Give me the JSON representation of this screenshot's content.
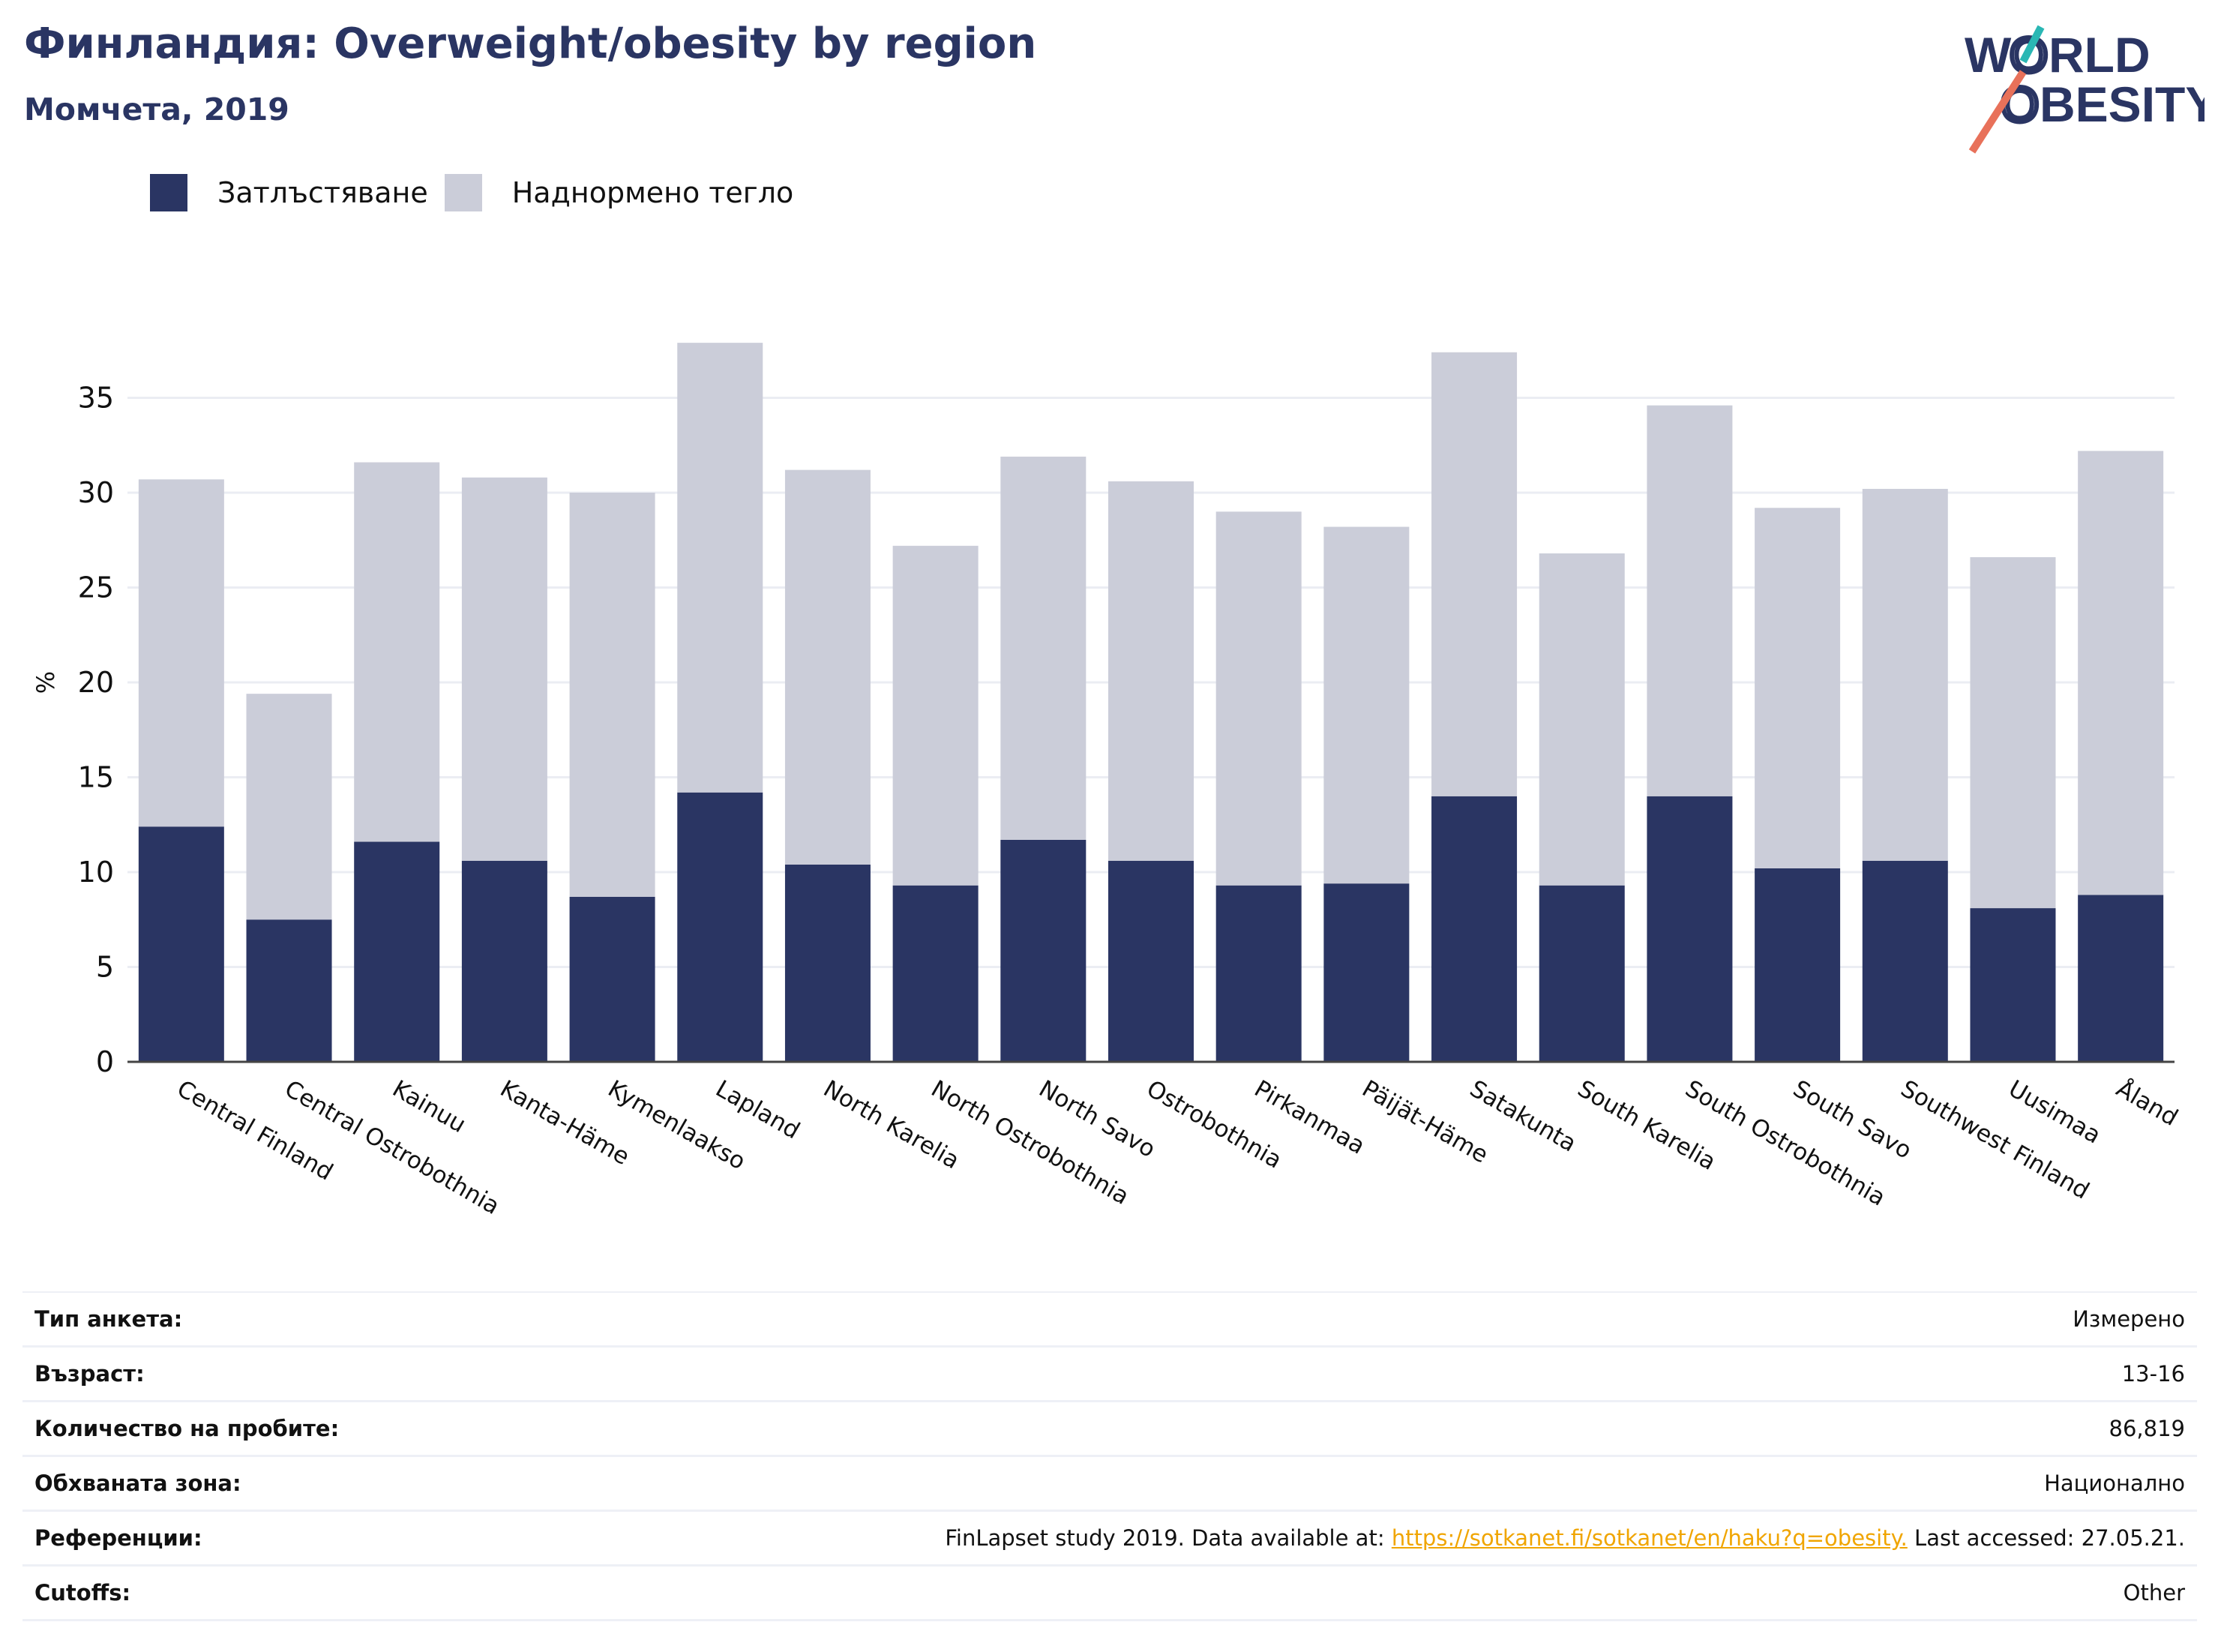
{
  "header": {
    "title": "Финландия: Overweight/obesity by region",
    "subtitle": "Момчета, 2019"
  },
  "logo": {
    "line1": "WORLD",
    "line2": "OBESITY",
    "accent_colors": [
      "#2ab7b4",
      "#e8715a"
    ],
    "text_color": "#2a3563"
  },
  "legend": [
    {
      "label": "Затлъстяване",
      "color": "#2a3563"
    },
    {
      "label": "Наднормено тегло",
      "color": "#cbcdd9"
    }
  ],
  "chart_data": {
    "type": "bar",
    "stacked": true,
    "ylabel": "%",
    "ylim": [
      0,
      38
    ],
    "yticks": [
      0,
      5,
      10,
      15,
      20,
      25,
      30,
      35
    ],
    "grid": true,
    "legend_position": "top-left",
    "categories": [
      "Central Finland",
      "Central Ostrobothnia",
      "Kainuu",
      "Kanta-Häme",
      "Kymenlaakso",
      "Lapland",
      "North Karelia",
      "North Ostrobothnia",
      "North Savo",
      "Ostrobothnia",
      "Pirkanmaa",
      "Päijät-Häme",
      "Satakunta",
      "South Karelia",
      "South Ostrobothnia",
      "South Savo",
      "Southwest Finland",
      "Uusimaa",
      "Åland"
    ],
    "series": [
      {
        "name": "Затлъстяване",
        "color": "#2a3563",
        "values": [
          12.4,
          7.5,
          11.6,
          10.6,
          8.7,
          14.2,
          10.4,
          9.3,
          11.7,
          10.6,
          9.3,
          9.4,
          14.0,
          9.3,
          14.0,
          10.2,
          10.6,
          8.1,
          8.8
        ]
      },
      {
        "name": "Наднормено тегло",
        "color": "#cbcdd9",
        "values": [
          18.3,
          11.9,
          20.0,
          20.2,
          21.3,
          23.7,
          20.8,
          17.9,
          20.2,
          20.0,
          19.7,
          18.8,
          23.4,
          17.5,
          20.6,
          19.0,
          19.6,
          18.5,
          23.4
        ]
      }
    ]
  },
  "info_table": [
    {
      "key": "Тип анкета:",
      "value": "Измерено"
    },
    {
      "key": "Възраст:",
      "value": "13-16"
    },
    {
      "key": "Количество на пробите:",
      "value": "86,819"
    },
    {
      "key": "Обхваната зона:",
      "value": "Национално"
    },
    {
      "key": "Референции:",
      "value_prefix": "FinLapset study 2019. Data available at: ",
      "link": "https://sotkanet.fi/sotkanet/en/haku?q=obesity.",
      "value_suffix": " Last accessed: 27.05.21."
    },
    {
      "key": "Cutoffs:",
      "value": "Other"
    }
  ]
}
